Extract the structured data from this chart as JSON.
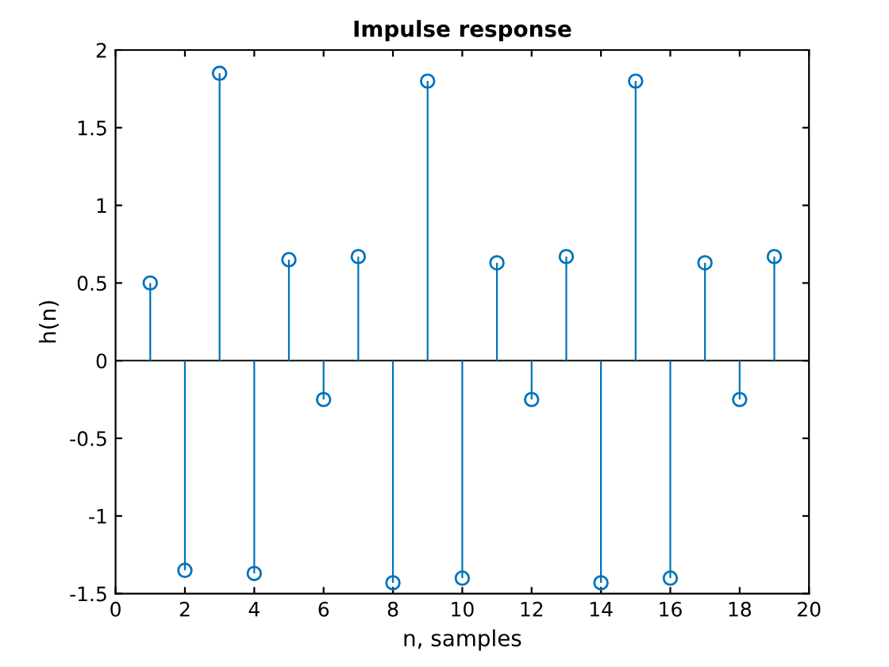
{
  "chart_data": {
    "type": "lollipop",
    "title": "Impulse response",
    "xlabel": "n, samples",
    "ylabel": "h(n)",
    "x": [
      1,
      2,
      3,
      4,
      5,
      6,
      7,
      8,
      9,
      10,
      11,
      12,
      13,
      14,
      15,
      16,
      17,
      18,
      19
    ],
    "series": [
      {
        "color": "#0072bd",
        "values": [
          0.5,
          -1.35,
          1.85,
          -1.37,
          0.65,
          -0.25,
          0.67,
          -1.43,
          1.8,
          -1.4,
          0.63,
          -0.25,
          0.67,
          -1.43,
          1.8,
          -1.4,
          0.63,
          -0.25,
          0.67
        ]
      }
    ],
    "marker": "circle",
    "xlim": [
      0,
      20
    ],
    "xticks": [
      0,
      2,
      4,
      6,
      8,
      10,
      12,
      14,
      16,
      18,
      20
    ],
    "ylim": [
      -1.5,
      2
    ],
    "yticks": [
      -1.5,
      -1,
      -0.5,
      0,
      0.5,
      1,
      1.5,
      2
    ],
    "ref_lines": [
      {
        "axis": "y",
        "value": 0,
        "color": "#262626"
      }
    ],
    "legend": false
  }
}
